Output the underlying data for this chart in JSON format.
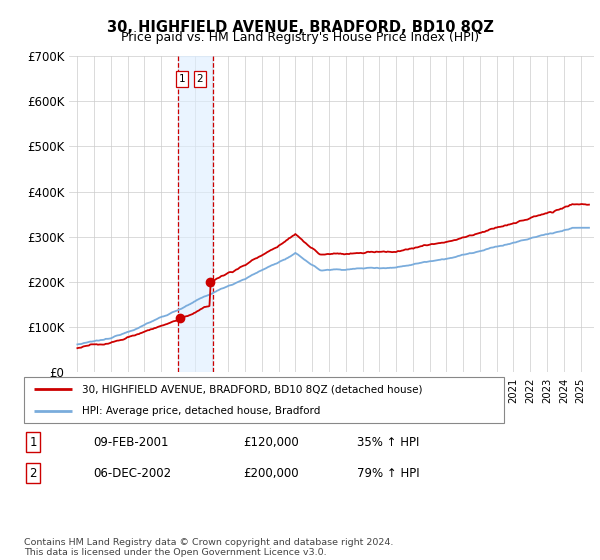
{
  "title": "30, HIGHFIELD AVENUE, BRADFORD, BD10 8QZ",
  "subtitle": "Price paid vs. HM Land Registry's House Price Index (HPI)",
  "legend_line1": "30, HIGHFIELD AVENUE, BRADFORD, BD10 8QZ (detached house)",
  "legend_line2": "HPI: Average price, detached house, Bradford",
  "transaction1_date": "09-FEB-2001",
  "transaction1_price": "£120,000",
  "transaction1_hpi": "35% ↑ HPI",
  "transaction1_year": 2001.1,
  "transaction1_value": 120000,
  "transaction2_date": "06-DEC-2002",
  "transaction2_price": "£200,000",
  "transaction2_hpi": "79% ↑ HPI",
  "transaction2_year": 2002.92,
  "transaction2_value": 200000,
  "footer": "Contains HM Land Registry data © Crown copyright and database right 2024.\nThis data is licensed under the Open Government Licence v3.0.",
  "red_color": "#cc0000",
  "blue_color": "#7aacdc",
  "highlight_fill": "#ddeeff",
  "highlight_border": "#cc0000",
  "ylim": [
    0,
    700000
  ],
  "yticks": [
    0,
    100000,
    200000,
    300000,
    400000,
    500000,
    600000,
    700000
  ],
  "ytick_labels": [
    "£0",
    "£100K",
    "£200K",
    "£300K",
    "£400K",
    "£500K",
    "£600K",
    "£700K"
  ],
  "xlim_left": 1994.5,
  "xlim_right": 2025.8,
  "highlight_x1": 2001.0,
  "highlight_x2": 2003.1
}
